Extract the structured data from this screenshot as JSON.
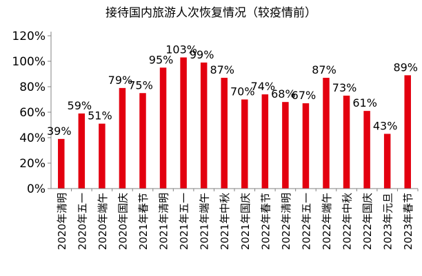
{
  "chart_data": {
    "type": "bar",
    "title": "接待国内旅游人次恢复情况（较疫情前）",
    "categories": [
      "2020年清明",
      "2020年五一",
      "2020年端午",
      "2020年国庆",
      "2021年春节",
      "2021年清明",
      "2021年五一",
      "2021年端午",
      "2021年中秋",
      "2021年国庆",
      "2022年春节",
      "2022年清明",
      "2022年五一",
      "2022年端午",
      "2022年中秋",
      "2022年国庆",
      "2023年元旦",
      "2023年春节"
    ],
    "values": [
      39,
      59,
      51,
      79,
      75,
      95,
      103,
      99,
      87,
      70,
      74,
      68,
      67,
      87,
      73,
      61,
      43,
      89
    ],
    "data_labels": [
      "39%",
      "59%",
      "51%",
      "79%",
      "75%",
      "95%",
      "103%",
      "99%",
      "87%",
      "70%",
      "74%",
      "68%",
      "67%",
      "87%",
      "73%",
      "61%",
      "43%",
      "89%"
    ],
    "y_ticks": [
      0,
      20,
      40,
      60,
      80,
      100,
      120
    ],
    "y_tick_labels": [
      "0%",
      "20%",
      "40%",
      "60%",
      "80%",
      "100%",
      "120%"
    ],
    "ylim": [
      0,
      120
    ],
    "xlabel": "",
    "ylabel": "",
    "grid": false,
    "bar_color": "#e3000f",
    "axis_color": "#808080"
  }
}
